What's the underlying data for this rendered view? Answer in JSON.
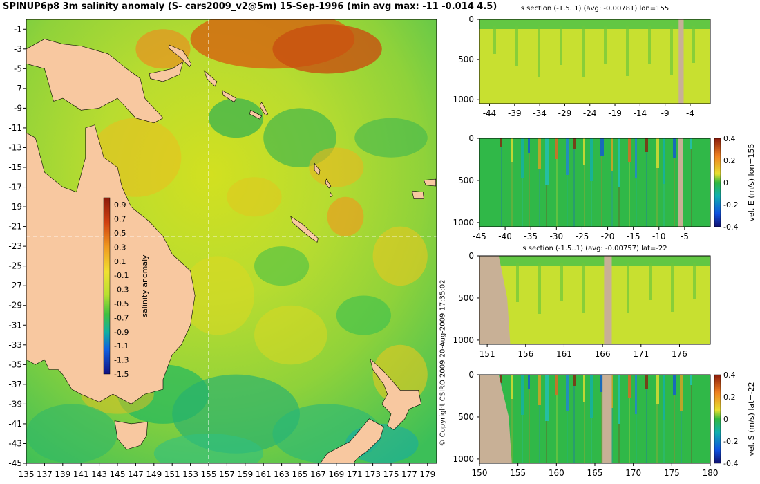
{
  "title": "SPINUP6p8 3m salinity anomaly (S- cars2009_v2@5m) 15-Sep-1996 (min avg max: -11 -0.014 4.5)",
  "copyright": "© Copyright CSIRO 2009   20-Aug-2009 17:35:02",
  "colors": {
    "land": "#f8c8a0",
    "section_land": "#c8b096",
    "crosshair": "#ffffff"
  },
  "chart_data": [
    {
      "type": "heatmap",
      "name": "salinity-map",
      "xlabel": "",
      "ylabel": "",
      "xlim": [
        135,
        180
      ],
      "ylim": [
        -45,
        0
      ],
      "x_ticks": [
        135,
        137,
        139,
        141,
        143,
        145,
        147,
        149,
        151,
        153,
        155,
        157,
        159,
        161,
        163,
        165,
        167,
        169,
        171,
        173,
        175,
        177,
        179
      ],
      "y_ticks": [
        -1,
        -3,
        -5,
        -7,
        -9,
        -11,
        -13,
        -15,
        -17,
        -19,
        -21,
        -23,
        -25,
        -27,
        -29,
        -31,
        -33,
        -35,
        -37,
        -39,
        -41,
        -43,
        -45
      ],
      "crosshair": {
        "lon": 155,
        "lat": -22
      },
      "colorbar": {
        "label": "salinity anomaly",
        "min": -1.5,
        "max": 1.0,
        "ticks": [
          "0.9",
          "0.7",
          "0.5",
          "0.3",
          "0.1",
          "-0.1",
          "-0.3",
          "-0.5",
          "-0.7",
          "-0.9",
          "-1.1",
          "-1.3",
          "-1.5"
        ]
      }
    },
    {
      "type": "heatmap",
      "name": "section-s-lon155",
      "title": "s section (-1.5..1) (avg: -0.00781) lon=155",
      "xlim": [
        -46,
        0
      ],
      "ylim": [
        0,
        1050
      ],
      "x_ticks": [
        -44,
        -39,
        -34,
        -29,
        -24,
        -19,
        -14,
        -9,
        -4
      ],
      "y_ticks": [
        0,
        500,
        1000
      ]
    },
    {
      "type": "heatmap",
      "name": "section-u-lon155",
      "xlim": [
        -45,
        0
      ],
      "ylim": [
        0,
        1050
      ],
      "x_ticks": [
        -45,
        -40,
        -35,
        -30,
        -25,
        -20,
        -15,
        -10,
        -5
      ],
      "y_ticks": [
        0,
        500,
        1000
      ],
      "colorbar": {
        "label": "vel. E (m/s) lon=155",
        "ticks": [
          "0.4",
          "0.2",
          "0",
          "-0.2",
          "-0.4"
        ],
        "range": [
          -0.4,
          0.4
        ]
      }
    },
    {
      "type": "heatmap",
      "name": "section-s-lat22",
      "title": "s section (-1.5..1) (avg: -0.00757) lat=-22",
      "xlim": [
        150,
        180
      ],
      "ylim": [
        0,
        1050
      ],
      "x_ticks": [
        151,
        156,
        161,
        166,
        171,
        176
      ],
      "y_ticks": [
        0,
        500,
        1000
      ]
    },
    {
      "type": "heatmap",
      "name": "section-v-lat22",
      "xlim": [
        150,
        180
      ],
      "ylim": [
        0,
        1050
      ],
      "x_ticks": [
        150,
        155,
        160,
        165,
        170,
        175,
        180
      ],
      "y_ticks": [
        0,
        500,
        1000
      ],
      "colorbar": {
        "label": "vel. S (m/s) lat=-22",
        "ticks": [
          "0.4",
          "0.2",
          "0",
          "-0.2",
          "-0.4"
        ],
        "range": [
          -0.4,
          0.4
        ]
      }
    }
  ]
}
